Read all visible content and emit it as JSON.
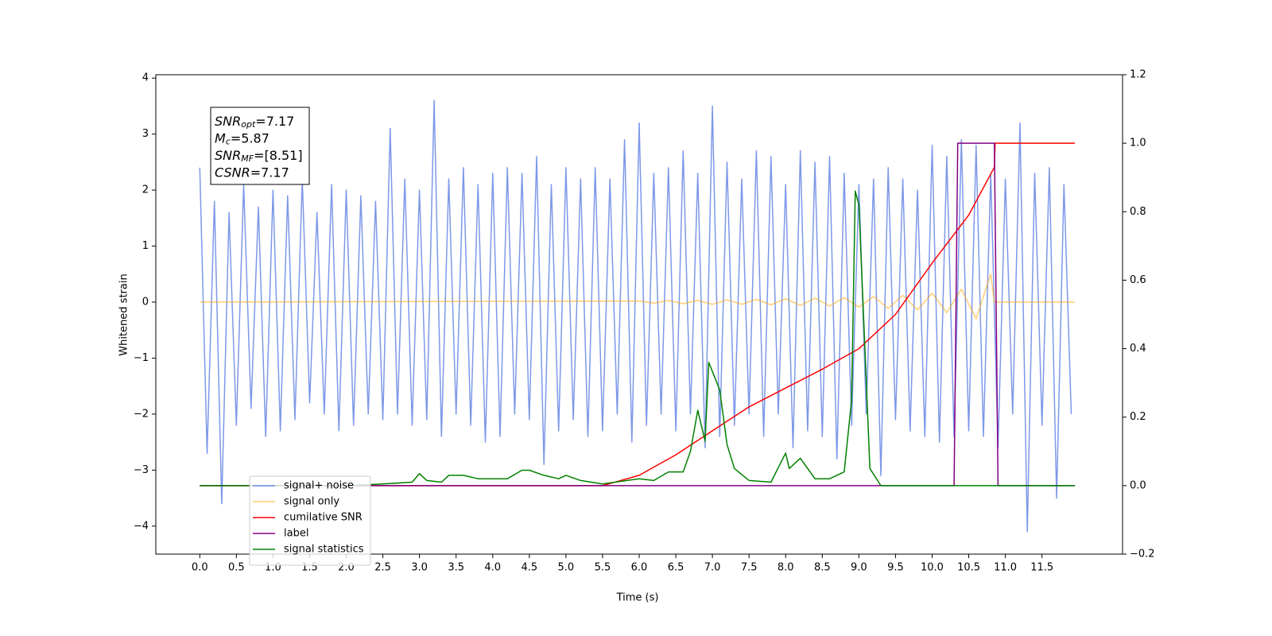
{
  "chart_data": {
    "type": "line",
    "xlabel": "Time (s)",
    "ylabel": "Whitened strain",
    "xlim": [
      -0.6,
      12.6
    ],
    "ylim": [
      -4.5,
      4.06
    ],
    "y2lim": [
      -0.2,
      1.2
    ],
    "xticks": [
      {
        "value": 0,
        "label": "0.0"
      },
      0.5,
      {
        "value": 1,
        "label": "1.0"
      },
      1.5,
      {
        "value": 2,
        "label": "2.0"
      },
      2.5,
      {
        "value": 3,
        "label": "3.0"
      },
      3.5,
      {
        "value": 4,
        "label": "4.0"
      },
      4.5,
      {
        "value": 5,
        "label": "5.0"
      },
      5.5,
      {
        "value": 6,
        "label": "6.0"
      },
      6.5,
      {
        "value": 7,
        "label": "7.0"
      },
      7.5,
      {
        "value": 8,
        "label": "8.0"
      },
      8.5,
      {
        "value": 9,
        "label": "9.0"
      },
      9.5,
      {
        "value": 10,
        "label": "10.0"
      },
      10.5,
      {
        "value": 11,
        "label": "11.0"
      },
      11.5
    ],
    "yticks": [
      {
        "value": -4,
        "label": "−4"
      },
      {
        "value": -3,
        "label": "−3"
      },
      {
        "value": -2,
        "label": "−2"
      },
      {
        "value": -1,
        "label": "−1"
      },
      0,
      1,
      2,
      3,
      4
    ],
    "y2ticks": [
      {
        "value": -0.2,
        "label": "−0.2"
      },
      {
        "value": 0,
        "label": "0.0"
      },
      0.2,
      0.4,
      0.6,
      0.8,
      {
        "value": 1,
        "label": "1.0"
      },
      1.2
    ],
    "legend": "lower left",
    "annotation": [
      {
        "text": "SNR",
        "sub": "opt",
        "value": "=7.17"
      },
      {
        "text": "M",
        "sub": "c",
        "value": "=5.87"
      },
      {
        "text": "SNR",
        "sub": "MF",
        "value": "=[8.51]"
      },
      {
        "text": "CSNR",
        "value": "=7.17"
      }
    ],
    "series": [
      {
        "name": "signal+ noise",
        "color": "#6f8de6",
        "x": [
          0,
          0.1,
          0.2,
          0.3,
          0.4,
          0.5,
          0.6,
          0.7,
          0.8,
          0.9,
          1,
          1.1,
          1.2,
          1.3,
          1.4,
          1.5,
          1.6,
          1.7,
          1.8,
          1.9,
          2,
          2.1,
          2.2,
          2.3,
          2.4,
          2.5,
          2.6,
          2.7,
          2.8,
          2.9,
          3,
          3.1,
          3.2,
          3.3,
          3.4,
          3.5,
          3.6,
          3.7,
          3.8,
          3.9,
          4,
          4.1,
          4.2,
          4.3,
          4.4,
          4.5,
          4.6,
          4.7,
          4.8,
          4.9,
          5,
          5.1,
          5.2,
          5.3,
          5.4,
          5.5,
          5.6,
          5.7,
          5.8,
          5.9,
          6,
          6.1,
          6.2,
          6.3,
          6.4,
          6.5,
          6.6,
          6.7,
          6.8,
          6.9,
          7,
          7.1,
          7.2,
          7.3,
          7.4,
          7.5,
          7.6,
          7.7,
          7.8,
          7.9,
          8,
          8.1,
          8.2,
          8.3,
          8.4,
          8.5,
          8.6,
          8.7,
          8.8,
          8.9,
          9,
          9.1,
          9.2,
          9.3,
          9.4,
          9.5,
          9.6,
          9.7,
          9.8,
          9.9,
          10,
          10.1,
          10.2,
          10.3,
          10.4,
          10.5,
          10.6,
          10.7,
          10.8,
          10.9,
          11,
          11.1,
          11.2,
          11.3,
          11.4,
          11.5,
          11.6,
          11.7,
          11.8,
          11.9
        ],
        "values": [
          2.4,
          -2.7,
          1.8,
          -3.6,
          1.6,
          -2.2,
          2.1,
          -1.9,
          1.7,
          -2.4,
          2.0,
          -2.3,
          1.9,
          -2.1,
          2.2,
          -1.8,
          1.6,
          -2.0,
          2.1,
          -2.3,
          2.0,
          -2.2,
          1.9,
          -2.0,
          1.8,
          -2.1,
          3.1,
          -2.0,
          2.2,
          -2.2,
          2.0,
          -2.1,
          3.6,
          -2.4,
          2.2,
          -2.0,
          2.4,
          -2.2,
          2.1,
          -2.5,
          2.3,
          -2.4,
          2.4,
          -2.0,
          2.3,
          -2.1,
          2.6,
          -2.9,
          2.1,
          -2.3,
          2.4,
          -2.1,
          2.2,
          -2.4,
          2.4,
          -2.3,
          2.2,
          -2.0,
          2.9,
          -2.5,
          3.2,
          -2.2,
          2.3,
          -2.0,
          2.4,
          -2.3,
          2.7,
          -2.0,
          2.3,
          -2.6,
          3.5,
          -2.4,
          2.5,
          -2.2,
          2.2,
          -2.0,
          2.7,
          -2.4,
          2.6,
          -2.0,
          2.1,
          -2.6,
          2.7,
          -2.3,
          2.5,
          -2.4,
          2.6,
          -2.8,
          2.3,
          -2.2,
          2.1,
          -2.0,
          2.2,
          -3.1,
          2.4,
          -2.1,
          2.2,
          -2.3,
          2.0,
          -2.4,
          2.8,
          -2.5,
          2.6,
          -2.4,
          2.9,
          -2.3,
          2.8,
          -2.4,
          2.3,
          -2.6,
          2.2,
          -2.0,
          3.2,
          -4.1,
          2.3,
          -2.2,
          2.4,
          -3.5,
          2.1,
          -2.0
        ]
      },
      {
        "name": "signal only",
        "color": "#ffa500",
        "x": [
          0,
          6.0,
          6.2,
          6.4,
          6.6,
          6.8,
          7.0,
          7.2,
          7.4,
          7.6,
          7.8,
          8.0,
          8.2,
          8.4,
          8.6,
          8.8,
          9.0,
          9.2,
          9.4,
          9.6,
          9.8,
          10.0,
          10.2,
          10.4,
          10.6,
          10.8,
          10.85,
          11.95
        ],
        "values": [
          0,
          0.02,
          -0.02,
          0.03,
          -0.03,
          0.03,
          -0.04,
          0.04,
          -0.04,
          0.05,
          -0.05,
          0.06,
          -0.06,
          0.07,
          -0.07,
          0.08,
          -0.09,
          0.1,
          -0.11,
          0.12,
          -0.14,
          0.16,
          -0.19,
          0.23,
          -0.3,
          0.5,
          0,
          0
        ]
      },
      {
        "name": "cumilative SNR",
        "color": "#ff0000",
        "axis": "y2",
        "x": [
          0,
          5.0,
          5.5,
          6.0,
          6.5,
          7.0,
          7.5,
          8.0,
          8.5,
          9.0,
          9.5,
          10.0,
          10.5,
          10.85,
          10.86,
          11.95
        ],
        "values": [
          0,
          0,
          0,
          0.03,
          0.09,
          0.16,
          0.23,
          0.285,
          0.34,
          0.4,
          0.5,
          0.65,
          0.79,
          0.93,
          1.0,
          1.0
        ]
      },
      {
        "name": "label",
        "color": "#800080",
        "axis": "y2",
        "x": [
          0,
          10.3,
          10.35,
          10.85,
          10.9,
          11.95
        ],
        "values": [
          0,
          0,
          1,
          1,
          0,
          0
        ]
      },
      {
        "name": "signal statistics",
        "color": "#008000",
        "axis": "y2",
        "x": [
          0,
          2.0,
          2.5,
          2.9,
          3.0,
          3.1,
          3.3,
          3.4,
          3.6,
          3.8,
          4.0,
          4.2,
          4.4,
          4.5,
          4.7,
          4.9,
          5.0,
          5.2,
          5.5,
          6.0,
          6.2,
          6.4,
          6.6,
          6.7,
          6.8,
          6.9,
          6.95,
          7.1,
          7.2,
          7.3,
          7.5,
          7.8,
          8.0,
          8.05,
          8.2,
          8.4,
          8.6,
          8.8,
          8.9,
          8.95,
          9.0,
          9.15,
          9.3,
          11.95
        ],
        "values": [
          0,
          0,
          0.005,
          0.01,
          0.035,
          0.015,
          0.01,
          0.03,
          0.03,
          0.02,
          0.02,
          0.02,
          0.045,
          0.045,
          0.03,
          0.02,
          0.03,
          0.015,
          0.005,
          0.02,
          0.015,
          0.04,
          0.04,
          0.1,
          0.22,
          0.13,
          0.36,
          0.28,
          0.12,
          0.05,
          0.015,
          0.01,
          0.095,
          0.05,
          0.08,
          0.02,
          0.02,
          0.04,
          0.25,
          0.86,
          0.82,
          0.05,
          0,
          0
        ]
      }
    ]
  }
}
